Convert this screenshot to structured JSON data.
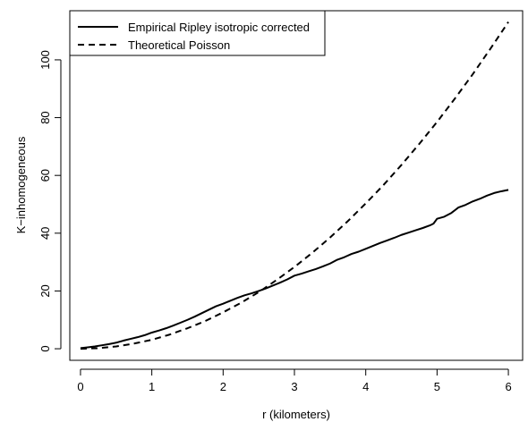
{
  "chart_data": {
    "type": "line",
    "title": "",
    "xlabel": "r (kilometers)",
    "ylabel": "K−inhomogeneous",
    "xlim": [
      -0.15,
      6.2
    ],
    "ylim": [
      -4,
      117
    ],
    "x_ticks": [
      0,
      1,
      2,
      3,
      4,
      5,
      6
    ],
    "x_tick_labels": [
      "0",
      "1",
      "2",
      "3",
      "4",
      "5",
      "6"
    ],
    "y_ticks": [
      0,
      20,
      40,
      60,
      80,
      100
    ],
    "y_tick_labels": [
      "0",
      "20",
      "40",
      "60",
      "80",
      "100"
    ],
    "grid": false,
    "legend_position": "top-left",
    "series": [
      {
        "name": "Empirical Ripley isotropic corrected",
        "line_style": "solid",
        "color": "#000000",
        "x": [
          0,
          0.1,
          0.2,
          0.3,
          0.4,
          0.5,
          0.6,
          0.7,
          0.8,
          0.9,
          1.0,
          1.1,
          1.2,
          1.3,
          1.4,
          1.5,
          1.6,
          1.7,
          1.8,
          1.9,
          2.0,
          2.1,
          2.2,
          2.3,
          2.4,
          2.5,
          2.6,
          2.7,
          2.8,
          2.9,
          3.0,
          3.1,
          3.2,
          3.3,
          3.4,
          3.5,
          3.6,
          3.7,
          3.8,
          3.9,
          4.0,
          4.1,
          4.2,
          4.3,
          4.4,
          4.5,
          4.6,
          4.7,
          4.8,
          4.9,
          4.95,
          5.0,
          5.1,
          5.2,
          5.3,
          5.4,
          5.5,
          5.6,
          5.7,
          5.8,
          5.9,
          6.0
        ],
        "y": [
          0.2,
          0.5,
          0.8,
          1.2,
          1.6,
          2.1,
          2.8,
          3.4,
          4.0,
          4.7,
          5.6,
          6.3,
          7.1,
          8.0,
          9.0,
          10.0,
          11.1,
          12.3,
          13.5,
          14.7,
          15.6,
          16.6,
          17.6,
          18.5,
          19.2,
          20.0,
          20.9,
          21.9,
          22.9,
          24.0,
          25.3,
          26.0,
          26.8,
          27.6,
          28.5,
          29.5,
          30.8,
          31.7,
          32.8,
          33.6,
          34.6,
          35.6,
          36.6,
          37.5,
          38.4,
          39.4,
          40.2,
          41.0,
          41.8,
          42.7,
          43.3,
          45.0,
          45.7,
          47.0,
          48.9,
          49.8,
          51.0,
          51.9,
          53.0,
          53.9,
          54.5,
          55.0
        ]
      },
      {
        "name": "Theoretical Poisson",
        "line_style": "dashed",
        "color": "#000000",
        "x": [
          0,
          0.25,
          0.5,
          0.75,
          1.0,
          1.25,
          1.5,
          1.75,
          2.0,
          2.25,
          2.5,
          2.75,
          3.0,
          3.25,
          3.5,
          3.75,
          4.0,
          4.25,
          4.5,
          4.75,
          5.0,
          5.25,
          5.5,
          5.75,
          6.0
        ],
        "y": [
          0,
          0.2,
          0.8,
          1.8,
          3.1,
          4.9,
          7.1,
          9.6,
          12.6,
          15.9,
          19.6,
          23.8,
          28.3,
          33.2,
          38.5,
          44.2,
          50.3,
          56.7,
          63.6,
          70.9,
          78.5,
          86.6,
          95.0,
          103.9,
          113.1
        ]
      }
    ]
  }
}
